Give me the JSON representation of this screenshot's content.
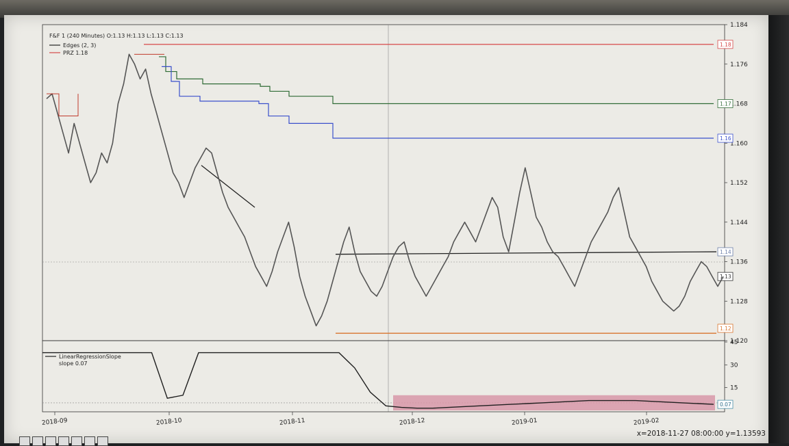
{
  "chart_data": [
    {
      "type": "line",
      "title": "F&F  1 (240 Minutes) O:1.13 H:1.13 L:1.13 C:1.13",
      "legend": [
        "Edges (2, 3)",
        "PRZ 1.18"
      ],
      "legend_position": "top-left",
      "x_ticks": [
        "2018-09",
        "2018-10",
        "2018-11",
        "2018-12",
        "2019-01",
        "2019-02"
      ],
      "y_ticks": [
        "1.184",
        "1.176",
        "1.168",
        "1.160",
        "1.152",
        "1.144",
        "1.136",
        "1.128",
        "1.120"
      ],
      "ylim": [
        1.12,
        1.184
      ],
      "price": [
        1.169,
        1.17,
        1.166,
        1.162,
        1.158,
        1.164,
        1.16,
        1.156,
        1.152,
        1.154,
        1.158,
        1.156,
        1.16,
        1.168,
        1.172,
        1.178,
        1.176,
        1.173,
        1.175,
        1.17,
        1.166,
        1.162,
        1.158,
        1.154,
        1.152,
        1.149,
        1.152,
        1.155,
        1.157,
        1.159,
        1.158,
        1.154,
        1.15,
        1.147,
        1.145,
        1.143,
        1.141,
        1.138,
        1.135,
        1.133,
        1.131,
        1.134,
        1.138,
        1.141,
        1.144,
        1.139,
        1.133,
        1.129,
        1.126,
        1.123,
        1.125,
        1.128,
        1.132,
        1.136,
        1.14,
        1.143,
        1.138,
        1.134,
        1.132,
        1.13,
        1.129,
        1.131,
        1.134,
        1.137,
        1.139,
        1.14,
        1.136,
        1.133,
        1.131,
        1.129,
        1.131,
        1.133,
        1.135,
        1.137,
        1.14,
        1.142,
        1.144,
        1.142,
        1.14,
        1.143,
        1.146,
        1.149,
        1.147,
        1.141,
        1.138,
        1.144,
        1.15,
        1.155,
        1.15,
        1.145,
        1.143,
        1.14,
        1.138,
        1.137,
        1.135,
        1.133,
        1.131,
        1.134,
        1.137,
        1.14,
        1.142,
        1.144,
        1.146,
        1.149,
        1.151,
        1.146,
        1.141,
        1.139,
        1.137,
        1.135,
        1.132,
        1.13,
        1.128,
        1.127,
        1.126,
        1.127,
        1.129,
        1.132,
        1.134,
        1.136,
        1.135,
        1.133,
        1.131,
        1.133
      ],
      "price_range": [
        1.1215,
        1.178
      ],
      "series": [
        {
          "name": "Edges (2, 3)",
          "kind": "step",
          "values": [
            1.165,
            1.165,
            1.165,
            1.165,
            1.178,
            1.17,
            1.169,
            1.1695,
            1.1695,
            1.1695,
            1.1695
          ]
        },
        {
          "name": "PRZ 1.18",
          "value": 1.18
        }
      ],
      "levels": [
        {
          "label": "1.18",
          "value": 1.18,
          "color": "#d64848"
        },
        {
          "label": "1.17",
          "value": 1.168,
          "color": "#2f6b35"
        },
        {
          "label": "1.16",
          "value": 1.161,
          "color": "#3a4fcc"
        },
        {
          "label": "1.14",
          "value": 1.1375,
          "color": "#222222"
        },
        {
          "label": "1.13",
          "value": 1.133,
          "color": "#222222"
        },
        {
          "label": "1.12",
          "value": 1.1215,
          "color": "#d9742c"
        }
      ],
      "crosshair": {
        "x": "2018-11-27 08:00:00",
        "y": 1.13593
      }
    },
    {
      "type": "line",
      "title": "",
      "legend": [
        "LinearRegressionSlope",
        "slope 0.07"
      ],
      "legend_position": "top-left",
      "y_ticks": [
        "45",
        "30",
        "15"
      ],
      "ylim": [
        0,
        45
      ],
      "values": [
        38,
        38,
        38,
        38,
        38,
        38,
        38,
        38,
        8,
        10,
        38,
        38,
        38,
        38,
        38,
        38,
        38,
        38,
        38,
        38,
        28,
        12,
        3,
        2,
        1.5,
        1.5,
        2,
        2.5,
        3,
        3.5,
        4,
        4.5,
        5,
        5.5,
        6,
        6.5,
        6.5,
        6.5,
        6.5,
        6.0,
        5.5,
        5.0,
        4.5,
        4.0
      ],
      "band": {
        "low": 0,
        "high": 10,
        "color": "#d898a8"
      },
      "value_label": "0.07",
      "color": "#1f1f1f"
    }
  ],
  "status": {
    "coordinates": "x=2018-11-27 08:00:00 y=1.13593"
  }
}
